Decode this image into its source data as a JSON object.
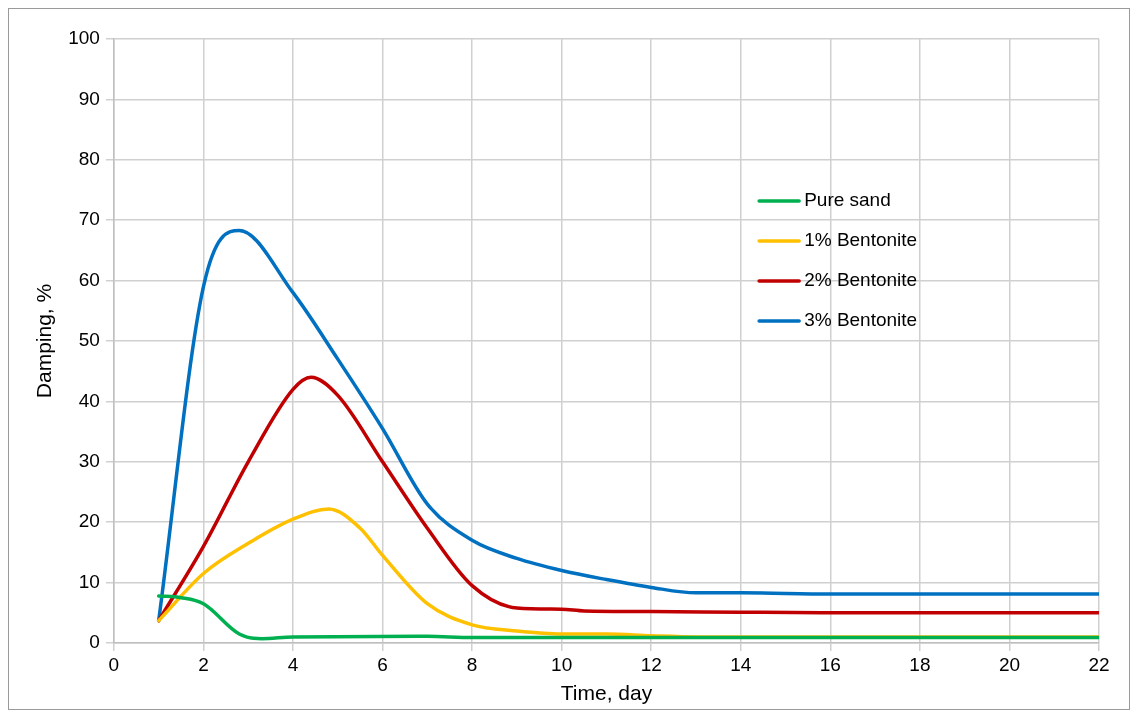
{
  "chart_data": {
    "type": "line",
    "xlabel": "Time, day",
    "ylabel": "Damping, %",
    "xlim": [
      0,
      22
    ],
    "xticks": [
      0,
      2,
      4,
      6,
      8,
      10,
      12,
      14,
      16,
      18,
      20,
      22
    ],
    "ylim": [
      0,
      100
    ],
    "yticks": [
      0,
      10,
      20,
      30,
      40,
      50,
      60,
      70,
      80,
      90,
      100
    ],
    "grid": true,
    "legend": "center right",
    "marker": "none",
    "line_style": "solid",
    "series": [
      {
        "name": "Pure sand",
        "color": "#00b050",
        "x": [
          1,
          1.5,
          2,
          2.8,
          3.3,
          4,
          7,
          8,
          22
        ],
        "values": [
          7.8,
          7.5,
          6.5,
          1.5,
          0.7,
          1.0,
          1.1,
          0.9,
          0.9
        ]
      },
      {
        "name": "1% Bentonite",
        "color": "#ffc000",
        "x": [
          1,
          2,
          3,
          4,
          4.8,
          5.5,
          6,
          7,
          8,
          9,
          10,
          11,
          12,
          13,
          22
        ],
        "values": [
          3.7,
          11.5,
          16.5,
          20.5,
          22.2,
          19,
          14.5,
          6.5,
          3.0,
          2.0,
          1.5,
          1.5,
          1.2,
          1.0,
          1.0
        ]
      },
      {
        "name": "2% Bentonite",
        "color": "#c00000",
        "x": [
          1,
          2,
          3,
          4,
          4.4,
          5,
          6,
          7,
          8,
          9,
          10,
          10.5,
          12,
          14,
          16,
          18,
          20,
          22
        ],
        "values": [
          3.7,
          16,
          30,
          42,
          44,
          41,
          30,
          19,
          9.5,
          5.8,
          5.6,
          5.3,
          5.2,
          5.1,
          5.0,
          5.0,
          5.0,
          5.0
        ]
      },
      {
        "name": "3% Bentonite",
        "color": "#0070c0",
        "x": [
          1,
          2,
          2.8,
          4,
          5,
          6,
          7,
          8,
          9,
          10,
          11,
          12,
          13,
          14,
          16,
          18,
          20,
          22
        ],
        "values": [
          3.7,
          59,
          68.3,
          58,
          47,
          35.5,
          23,
          17,
          14,
          12,
          10.5,
          9.2,
          8.3,
          8.3,
          8.1,
          8.1,
          8.1,
          8.1
        ]
      }
    ]
  }
}
